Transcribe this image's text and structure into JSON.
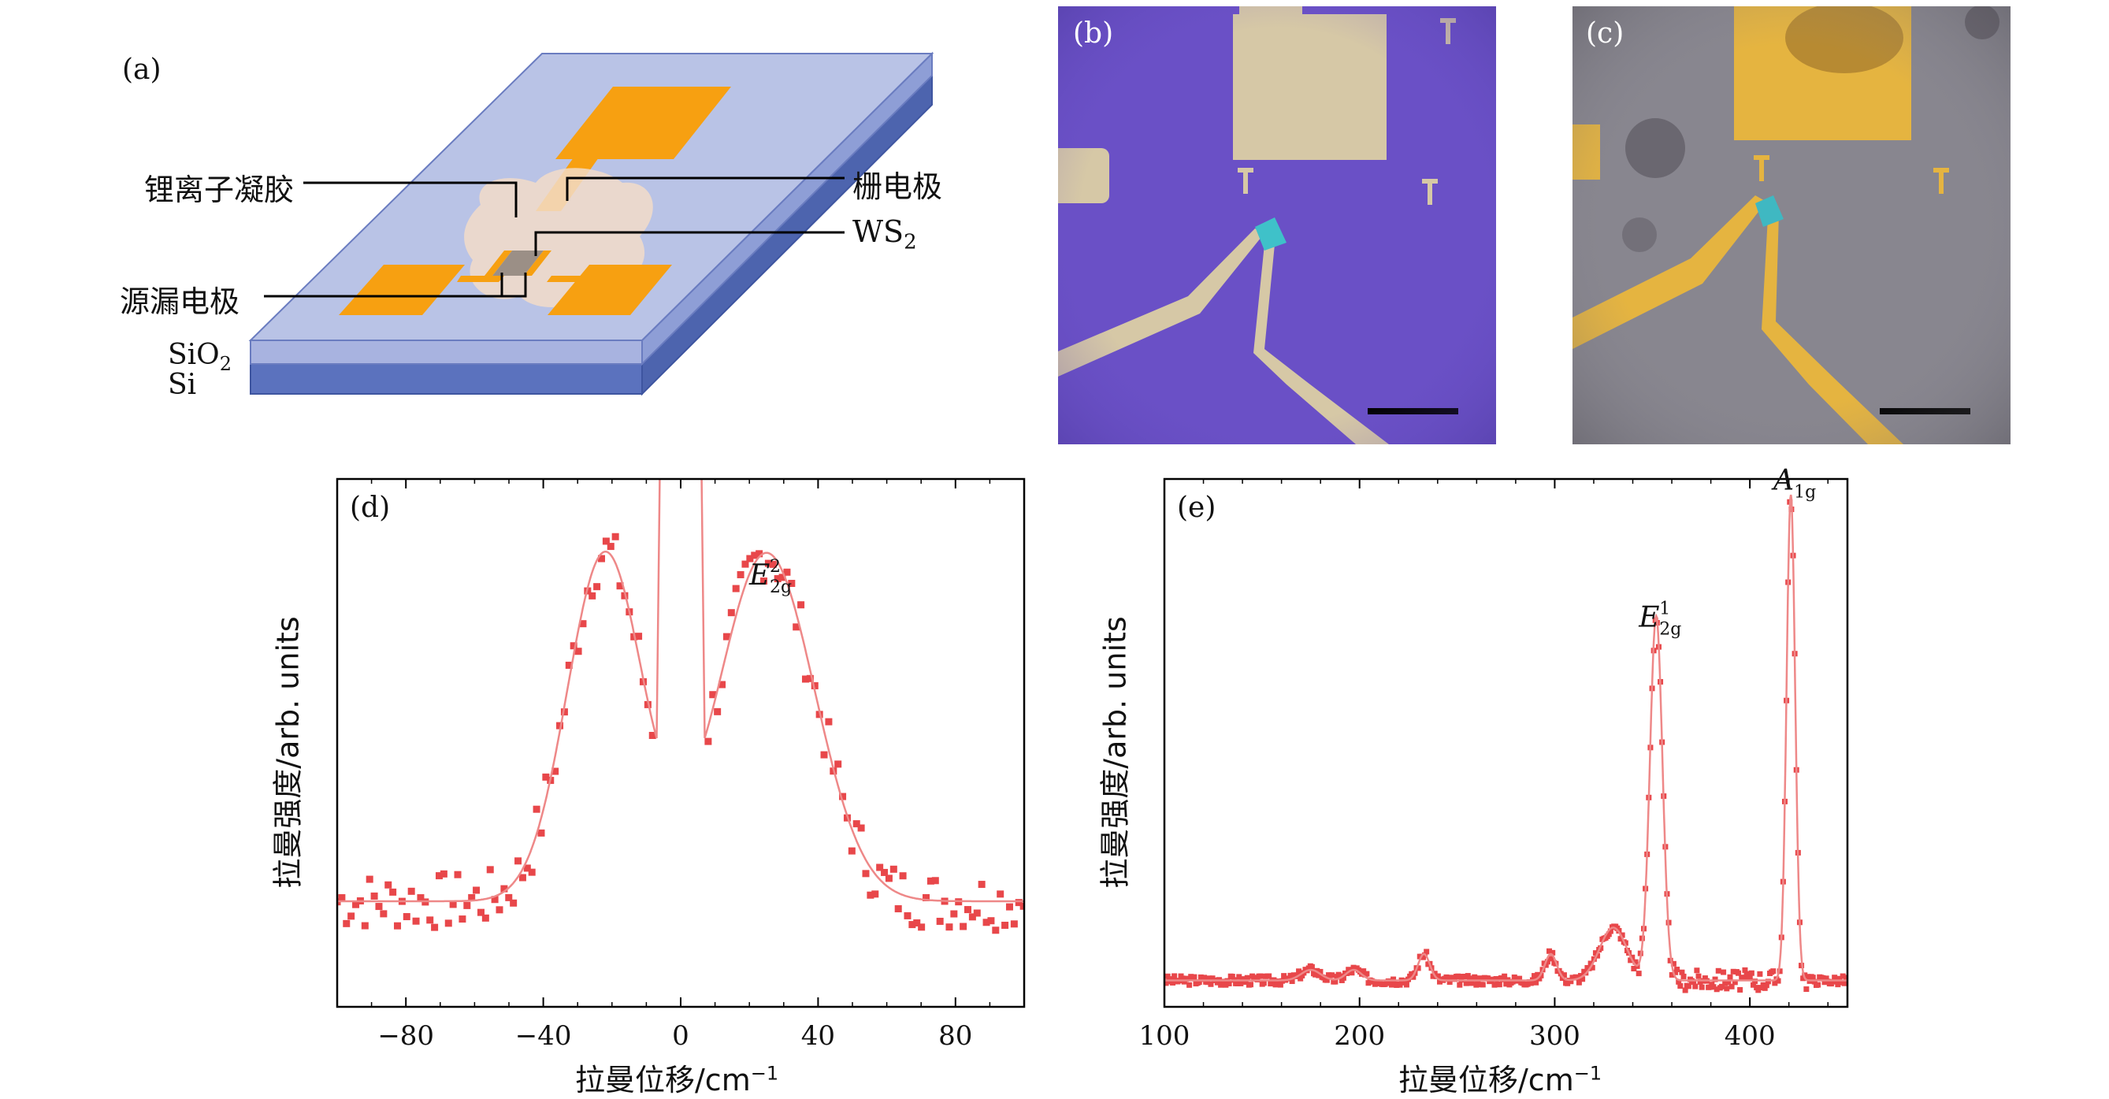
{
  "panel_a": {
    "label": "(a)",
    "callouts": {
      "gel": "锂离子凝胶",
      "gate": "栅电极",
      "ws2_base": "WS",
      "ws2_sub": "2",
      "source_drain": "源漏电极"
    },
    "layers": {
      "sio2_base": "SiO",
      "sio2_sub": "2",
      "si": "Si"
    },
    "colors": {
      "electrode": "#F7A011",
      "sio2_top": "#B9C3E6",
      "sio2_side": "#8E9ED6",
      "si_side": "#5B72BE"
    }
  },
  "panel_b": {
    "label": "(b)",
    "colors": {
      "substrate": "#6A50C6",
      "electrode": "#D6C8A6"
    }
  },
  "panel_c": {
    "label": "(c)",
    "colors": {
      "substrate": "#88868F",
      "electrode": "#E5B440"
    }
  },
  "chart_data": [
    {
      "panel": "(d)",
      "type": "scatter",
      "title": "",
      "xlabel_base": "拉曼位移/cm",
      "xlabel_sup": "−1",
      "ylabel": "拉曼强度/arb. units",
      "xlim": [
        -100,
        100
      ],
      "ylim": [
        0,
        1
      ],
      "xticks": [
        -80,
        -40,
        0,
        40,
        80
      ],
      "xtick_labels": [
        "−80",
        "−40",
        "0",
        "40",
        "80"
      ],
      "annotation": {
        "base": "E",
        "sup": "2",
        "sub": "2g",
        "x": 25,
        "y": 0.8
      },
      "series_color": "#E8474A",
      "fit_color": "#EE8888",
      "peaks": [
        {
          "center": -22,
          "height": 0.66,
          "width": 11
        },
        {
          "center": 25,
          "height": 0.66,
          "width": 14
        }
      ],
      "baseline": 0.2,
      "laser_line": {
        "x_left": -5,
        "x_right": 5
      }
    },
    {
      "panel": "(e)",
      "type": "scatter",
      "title": "",
      "xlabel_base": "拉曼位移/cm",
      "xlabel_sup": "−1",
      "ylabel": "拉曼强度/arb. units",
      "xlim": [
        100,
        450
      ],
      "ylim": [
        0,
        1
      ],
      "xticks": [
        100,
        200,
        300,
        400
      ],
      "xtick_labels": [
        "100",
        "200",
        "300",
        "400"
      ],
      "annotations": [
        {
          "base": "E",
          "sup": "1",
          "sub": "2g",
          "x": 352,
          "y": 0.72
        },
        {
          "base": "A",
          "sup": "",
          "sub": "1g",
          "x": 421,
          "y": 0.98
        }
      ],
      "series_color": "#E8474A",
      "fit_color": "#EE8888",
      "baseline": 0.05,
      "peaks": [
        {
          "center": 352,
          "height": 0.69,
          "width": 3.2
        },
        {
          "center": 421,
          "height": 0.92,
          "width": 2.2
        },
        {
          "center": 330,
          "height": 0.1,
          "width": 7
        },
        {
          "center": 298,
          "height": 0.05,
          "width": 3
        },
        {
          "center": 233,
          "height": 0.05,
          "width": 3
        },
        {
          "center": 197,
          "height": 0.02,
          "width": 4
        },
        {
          "center": 175,
          "height": 0.02,
          "width": 5
        }
      ]
    }
  ]
}
